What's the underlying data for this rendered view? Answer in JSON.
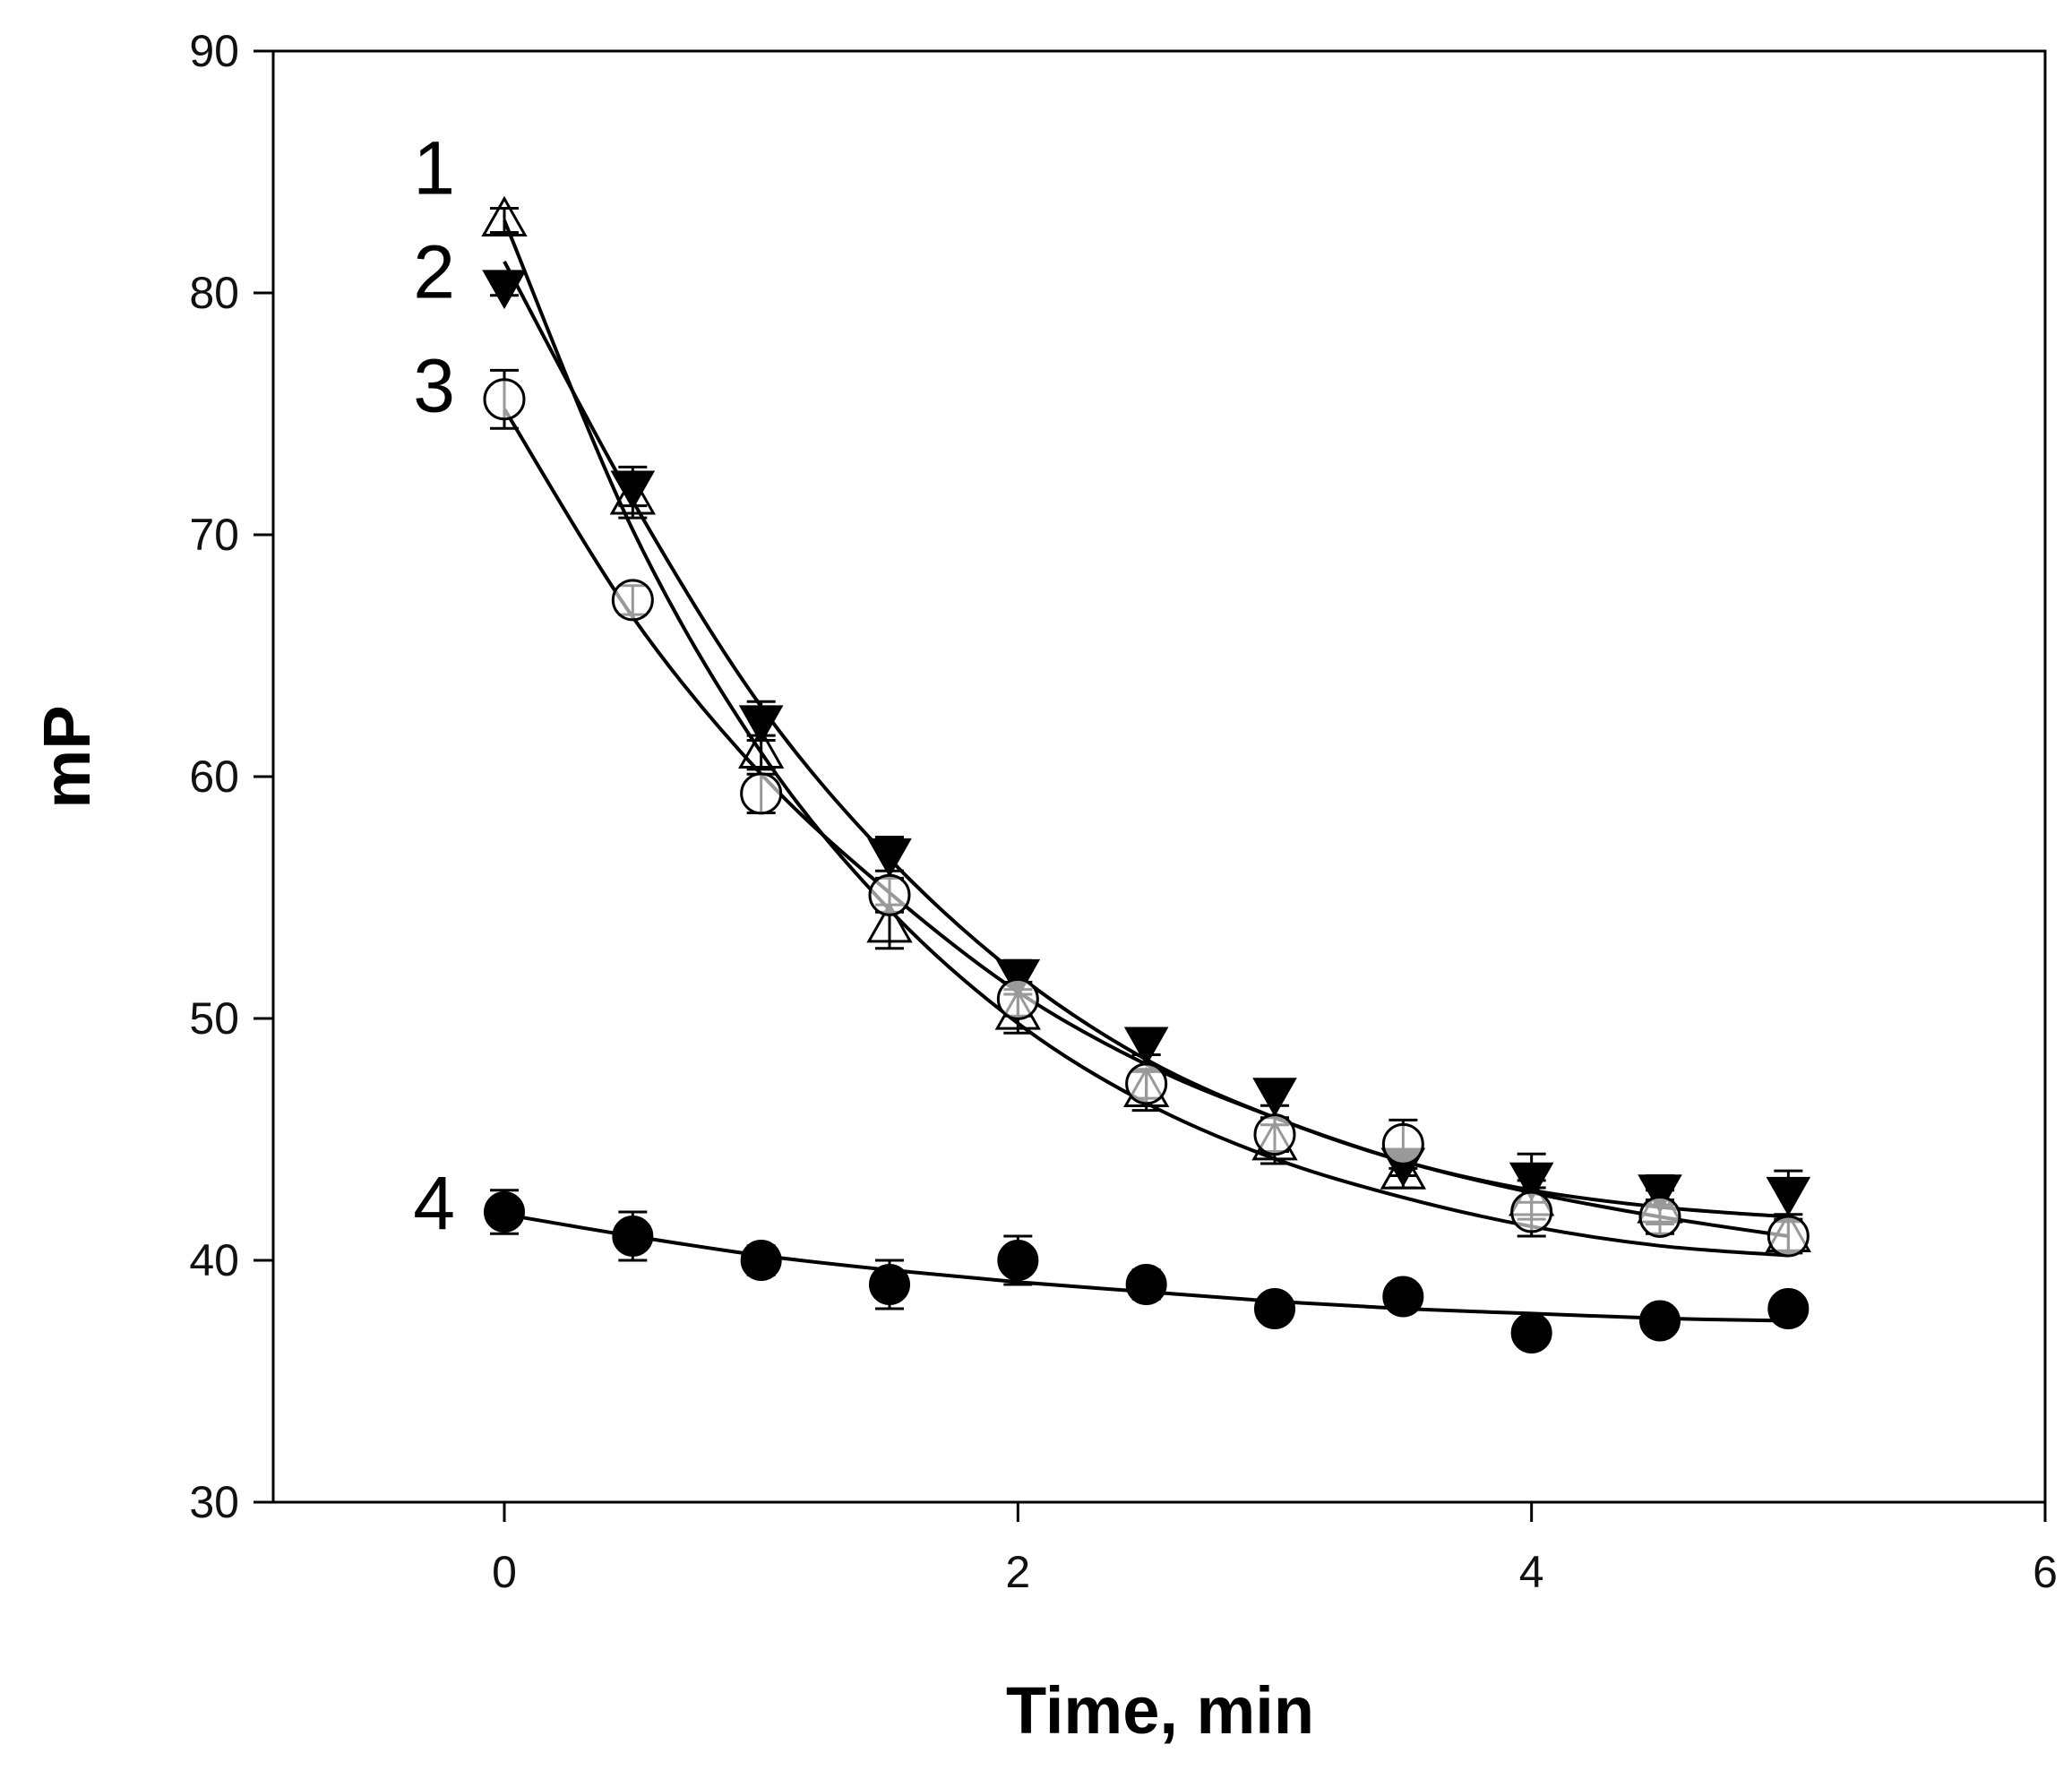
{
  "chart_data": {
    "type": "scatter",
    "title": "",
    "xlabel": "Time, min",
    "ylabel": "mP",
    "xlim": [
      -0.9,
      6
    ],
    "ylim": [
      30,
      90
    ],
    "xticks": [
      0,
      2,
      4,
      6
    ],
    "yticks": [
      30,
      40,
      50,
      60,
      70,
      80,
      90
    ],
    "grid": false,
    "legend": "none",
    "x": [
      0,
      0.5,
      1,
      1.5,
      2,
      2.5,
      3,
      3.5,
      4,
      4.5,
      5
    ],
    "series": [
      {
        "name": "1",
        "marker": "triangle-up-open",
        "values": [
          83.0,
          71.5,
          61.0,
          53.8,
          50.2,
          47.0,
          44.8,
          43.6,
          42.5,
          42.2,
          41.0
        ],
        "errors": [
          0.5,
          0.8,
          0.7,
          0.9,
          0.8,
          0.8,
          0.8,
          0.6,
          0.8,
          0.7,
          0.7
        ],
        "fit": [
          83.0,
          70.2,
          61.0,
          54.5,
          49.8,
          46.5,
          44.2,
          42.6,
          41.4,
          40.6,
          40.2
        ]
      },
      {
        "name": "2",
        "marker": "triangle-down-filled",
        "values": [
          80.3,
          72.0,
          62.3,
          56.8,
          51.8,
          49.0,
          46.9,
          44.0,
          43.4,
          42.9,
          42.8
        ],
        "errors": [
          0.4,
          0.8,
          0.8,
          0.7,
          0.6,
          0.5,
          0.5,
          0.5,
          1.0,
          0.6,
          0.9
        ],
        "fit": [
          81.3,
          71.4,
          62.9,
          56.6,
          51.8,
          48.3,
          45.9,
          44.1,
          42.9,
          42.2,
          41.8
        ]
      },
      {
        "name": "3",
        "marker": "circle-open",
        "values": [
          75.6,
          67.3,
          59.3,
          55.1,
          50.8,
          47.3,
          45.2,
          44.8,
          42.0,
          41.8,
          41.0
        ],
        "errors": [
          1.2,
          0.6,
          0.8,
          0.7,
          0.7,
          0.6,
          0.7,
          1.0,
          1.0,
          0.7,
          0.6
        ],
        "fit": [
          75.2,
          66.6,
          60.1,
          55.2,
          51.1,
          48.1,
          45.9,
          44.1,
          42.8,
          41.8,
          41.0
        ]
      },
      {
        "name": "4",
        "marker": "circle-filled",
        "values": [
          42.0,
          41.0,
          40.0,
          39.0,
          40.0,
          39.0,
          38.0,
          38.5,
          37.0,
          37.5,
          38.0
        ],
        "errors": [
          0.9,
          1.0,
          0.6,
          1.0,
          1.0,
          0.6,
          0.5,
          0.5,
          0.5,
          0.5,
          0.5
        ],
        "fit": [
          41.9,
          41.0,
          40.2,
          39.6,
          39.1,
          38.7,
          38.3,
          38.0,
          37.8,
          37.6,
          37.5
        ]
      }
    ],
    "annotations": [
      "1",
      "2",
      "3",
      "4"
    ]
  }
}
